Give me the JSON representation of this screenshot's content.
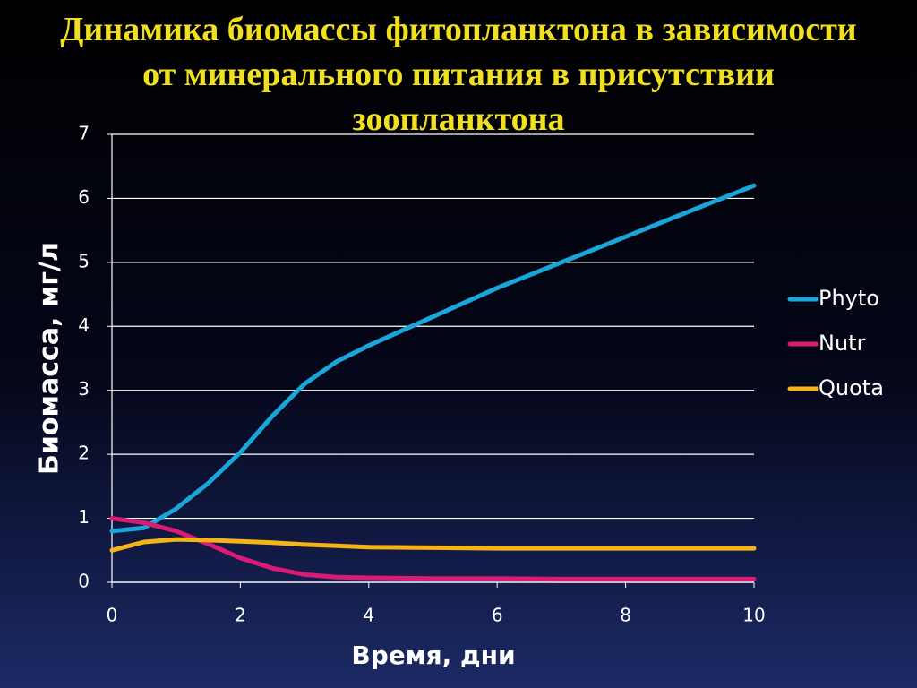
{
  "chart_data": {
    "type": "line",
    "title": "Динамика биомассы фитопланктона в зависимости от минерального питания в присутствии зоопланктона",
    "x_label": "Время, дни",
    "y_label": "Биомасса, мг/л",
    "x": [
      0,
      0.5,
      1,
      1.5,
      2,
      2.5,
      3,
      3.5,
      4,
      5,
      6,
      7,
      8,
      9,
      10
    ],
    "series": [
      {
        "name": "Phyto",
        "color": "#1aa6d8",
        "values": [
          0.8,
          0.85,
          1.15,
          1.55,
          2.03,
          2.6,
          3.1,
          3.45,
          3.7,
          4.15,
          4.6,
          5.0,
          5.4,
          5.8,
          6.2
        ]
      },
      {
        "name": "Nutr",
        "color": "#d81b74",
        "values": [
          1.0,
          0.93,
          0.8,
          0.6,
          0.38,
          0.22,
          0.12,
          0.08,
          0.07,
          0.06,
          0.06,
          0.05,
          0.05,
          0.05,
          0.05
        ]
      },
      {
        "name": "Quota",
        "color": "#f5b31a",
        "values": [
          0.5,
          0.63,
          0.67,
          0.66,
          0.64,
          0.62,
          0.59,
          0.57,
          0.55,
          0.54,
          0.53,
          0.53,
          0.53,
          0.53,
          0.53
        ]
      }
    ],
    "xlim": [
      0,
      10
    ],
    "xticks": [
      0,
      2,
      4,
      6,
      8,
      10
    ],
    "ylim": [
      0,
      7
    ],
    "yticks": [
      0,
      1,
      2,
      3,
      4,
      5,
      6,
      7
    ],
    "grid": true,
    "legend": "right"
  }
}
